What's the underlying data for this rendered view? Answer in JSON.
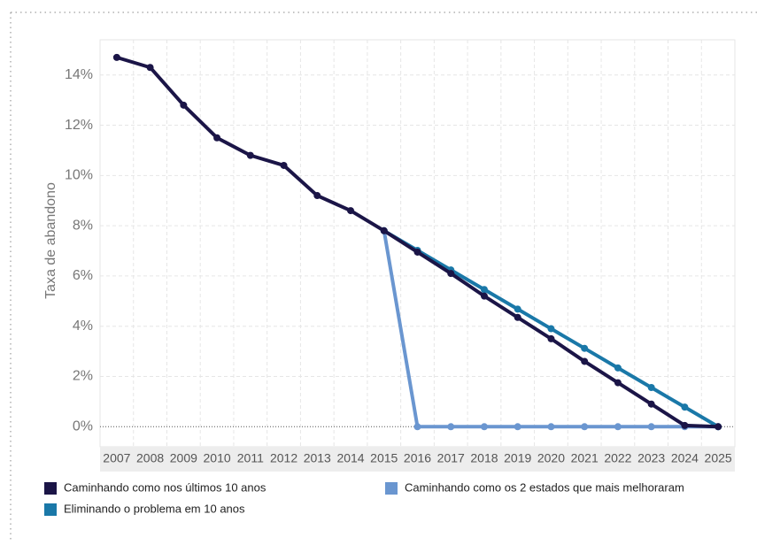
{
  "chart_data": {
    "type": "line",
    "y_label": "Taxa de abandono",
    "categories": [
      "2007",
      "2008",
      "2009",
      "2010",
      "2011",
      "2012",
      "2013",
      "2014",
      "2015",
      "2016",
      "2017",
      "2018",
      "2019",
      "2020",
      "2021",
      "2022",
      "2023",
      "2024",
      "2025"
    ],
    "series": [
      {
        "name": "Caminhando como nos últimos 10 anos",
        "color": "#1b1547",
        "values": [
          14.7,
          14.3,
          12.8,
          11.5,
          10.8,
          10.4,
          9.2,
          8.6,
          7.8,
          6.95,
          6.1,
          5.2,
          4.35,
          3.5,
          2.6,
          1.75,
          0.9,
          0.05,
          0
        ]
      },
      {
        "name": "Eliminando o problema em 10 anos",
        "color": "#1a78a8",
        "values": [
          null,
          null,
          null,
          null,
          null,
          null,
          null,
          null,
          7.8,
          7.02,
          6.24,
          5.46,
          4.68,
          3.9,
          3.12,
          2.34,
          1.56,
          0.78,
          0
        ]
      },
      {
        "name": "Caminhando como os 2 estados que mais melhoraram",
        "color": "#6a96d0",
        "values": [
          null,
          null,
          null,
          null,
          null,
          null,
          null,
          null,
          7.8,
          0,
          0,
          0,
          0,
          0,
          0,
          0,
          0,
          0,
          0
        ]
      }
    ],
    "ylim": [
      -0.8,
      15.4
    ],
    "yticks": [
      {
        "value": 0,
        "label": "0%"
      },
      {
        "value": 2,
        "label": "2%"
      },
      {
        "value": 4,
        "label": "4%"
      },
      {
        "value": 6,
        "label": "6%"
      },
      {
        "value": 8,
        "label": "8%"
      },
      {
        "value": 10,
        "label": "10%"
      },
      {
        "value": 12,
        "label": "12%"
      },
      {
        "value": 14,
        "label": "14%"
      }
    ],
    "grid": true
  }
}
